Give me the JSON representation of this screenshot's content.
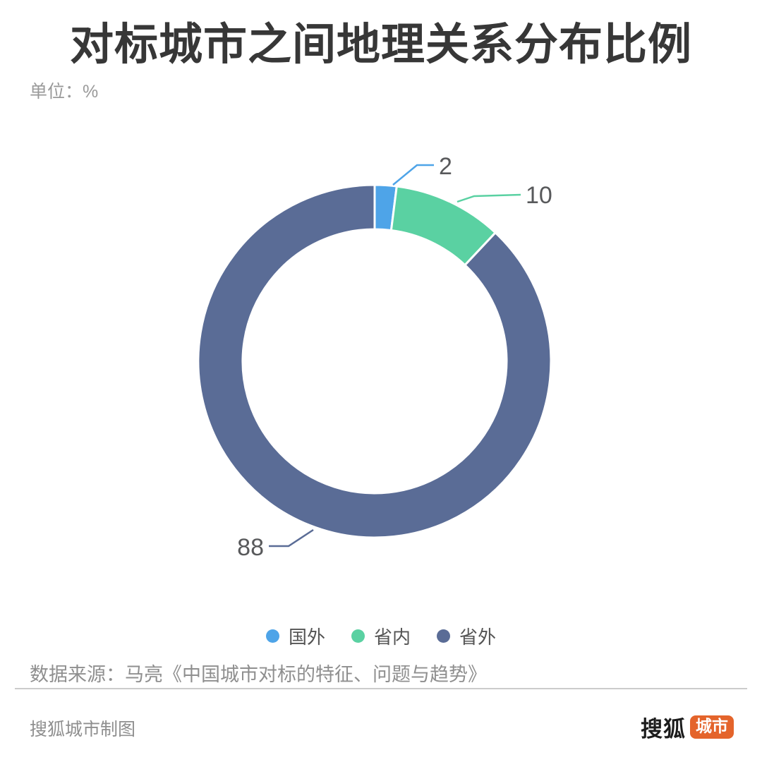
{
  "header": {
    "title": "对标城市之间地理关系分布比例",
    "unit_label": "单位：%"
  },
  "chart_data": {
    "type": "pie",
    "subtype": "donut",
    "title": "对标城市之间地理关系分布比例",
    "unit": "%",
    "categories": [
      "国外",
      "省内",
      "省外"
    ],
    "values": [
      2,
      10,
      88
    ],
    "colors": [
      "#4EA4E8",
      "#5AD1A2",
      "#5A6C96"
    ],
    "legend_position": "bottom",
    "label_text_color": "#58595b",
    "start_angle_deg": 0,
    "slice_border_color": "#ffffff"
  },
  "source": {
    "text": "数据来源：马亮《中国城市对标的特征、问题与趋势》"
  },
  "footer": {
    "credit": "搜狐城市制图",
    "logo": {
      "brand": "搜狐",
      "badge": "城市",
      "badge_color": "#E4642B"
    }
  }
}
